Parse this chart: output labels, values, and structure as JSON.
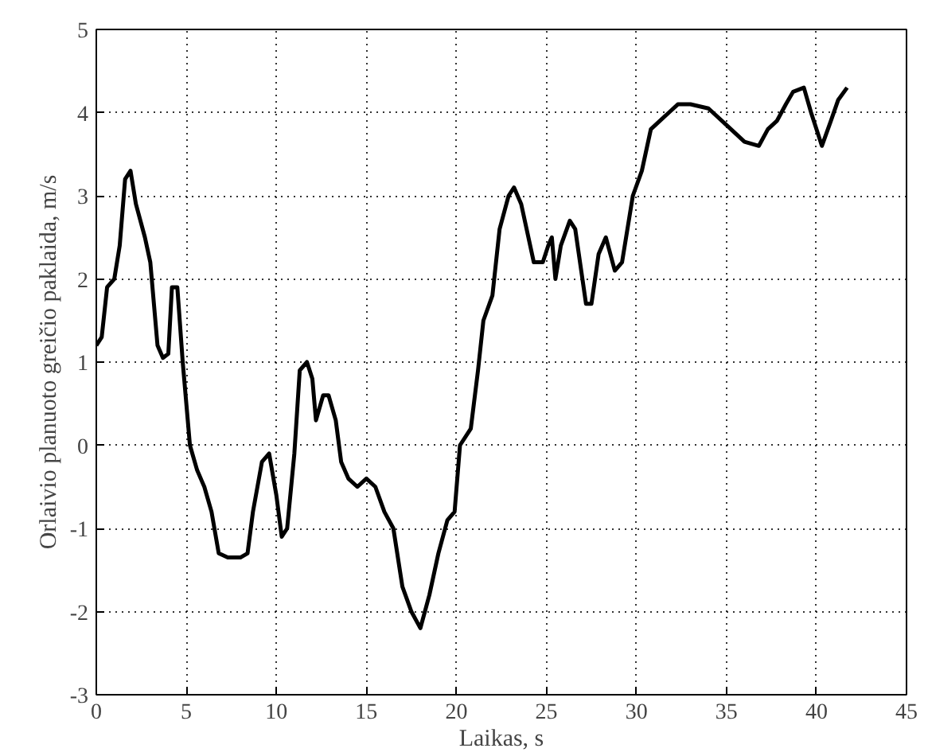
{
  "chart_data": {
    "type": "line",
    "xlabel": "Laikas, s",
    "ylabel": "Orlaivio planuoto greičio paklaida, m/s",
    "xlim": [
      0,
      45
    ],
    "ylim": [
      -3,
      5
    ],
    "xticks": [
      0,
      5,
      10,
      15,
      20,
      25,
      30,
      35,
      40,
      45
    ],
    "yticks": [
      -3,
      -2,
      -1,
      0,
      1,
      2,
      3,
      4,
      5
    ],
    "grid": true,
    "line_style": "solid",
    "marker": "none",
    "series": [
      {
        "color": "#000000",
        "x": [
          0,
          0.3,
          0.6,
          1.0,
          1.3,
          1.6,
          1.9,
          2.2,
          2.7,
          3.0,
          3.4,
          3.7,
          4.0,
          4.2,
          4.5,
          4.8,
          5.2,
          5.6,
          6.0,
          6.4,
          6.8,
          7.3,
          8.0,
          8.4,
          8.7,
          9.2,
          9.6,
          10.0,
          10.3,
          10.6,
          11.0,
          11.3,
          11.7,
          12.0,
          12.2,
          12.6,
          12.9,
          13.3,
          13.6,
          14.0,
          14.5,
          15.0,
          15.5,
          16.0,
          16.5,
          17.0,
          17.5,
          18.0,
          18.5,
          19.0,
          19.5,
          19.9,
          20.2,
          20.8,
          21.2,
          21.5,
          22.0,
          22.4,
          22.9,
          23.2,
          23.6,
          24.3,
          24.8,
          25.1,
          25.3,
          25.5,
          25.8,
          26.3,
          26.6,
          27.2,
          27.5,
          27.9,
          28.3,
          28.8,
          29.2,
          29.8,
          30.3,
          30.8,
          31.3,
          31.8,
          32.3,
          33.0,
          34.0,
          35.0,
          36.0,
          36.8,
          37.3,
          37.8,
          38.3,
          38.7,
          39.3,
          39.7,
          40.3,
          40.8,
          41.2,
          41.7
        ],
        "values": [
          1.2,
          1.3,
          1.9,
          2.0,
          2.4,
          3.2,
          3.3,
          2.9,
          2.5,
          2.2,
          1.2,
          1.05,
          1.1,
          1.9,
          1.9,
          1.0,
          0.0,
          -0.3,
          -0.5,
          -0.8,
          -1.3,
          -1.35,
          -1.35,
          -1.3,
          -0.8,
          -0.2,
          -0.1,
          -0.6,
          -1.1,
          -1.0,
          -0.1,
          0.9,
          1.0,
          0.8,
          0.3,
          0.6,
          0.6,
          0.3,
          -0.2,
          -0.4,
          -0.5,
          -0.4,
          -0.5,
          -0.8,
          -1.0,
          -1.7,
          -2.0,
          -2.2,
          -1.8,
          -1.3,
          -0.9,
          -0.8,
          0.0,
          0.2,
          0.9,
          1.5,
          1.8,
          2.6,
          3.0,
          3.1,
          2.9,
          2.2,
          2.2,
          2.4,
          2.5,
          2.0,
          2.4,
          2.7,
          2.6,
          1.7,
          1.7,
          2.3,
          2.5,
          2.1,
          2.2,
          3.0,
          3.3,
          3.8,
          3.9,
          4.0,
          4.1,
          4.1,
          4.05,
          3.85,
          3.65,
          3.6,
          3.8,
          3.9,
          4.1,
          4.25,
          4.3,
          4.0,
          3.6,
          3.9,
          4.15,
          4.3
        ]
      }
    ]
  }
}
